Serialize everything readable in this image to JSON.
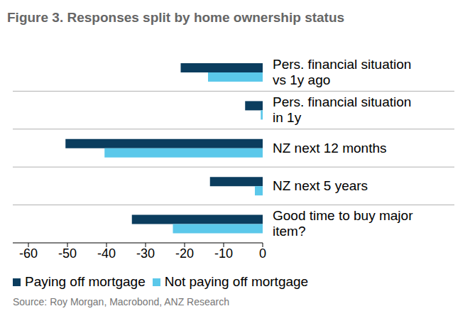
{
  "chart_data": {
    "type": "bar",
    "title": "Figure 3. Responses split by home ownership status",
    "source": "Source: Roy Morgan, Macrobond, ANZ Research",
    "orientation": "horizontal",
    "categories": [
      "Pers. financial situation vs 1y ago",
      "Pers. financial situation in 1y",
      "NZ next 12 months",
      "NZ next 5 years",
      "Good time to buy major item?"
    ],
    "series": [
      {
        "name": "Paying off mortgage",
        "color": "#0b3d5e",
        "values": [
          -21,
          -4.5,
          -50.5,
          -13.5,
          -33.5
        ]
      },
      {
        "name": "Not paying off mortgage",
        "color": "#5bc8ea",
        "values": [
          -14,
          -0.5,
          -40.5,
          -2,
          -23
        ]
      }
    ],
    "xlim": [
      -64,
      0
    ],
    "xticks": [
      -60,
      -50,
      -40,
      -30,
      -20,
      -10,
      0
    ],
    "legend": "bottom"
  }
}
